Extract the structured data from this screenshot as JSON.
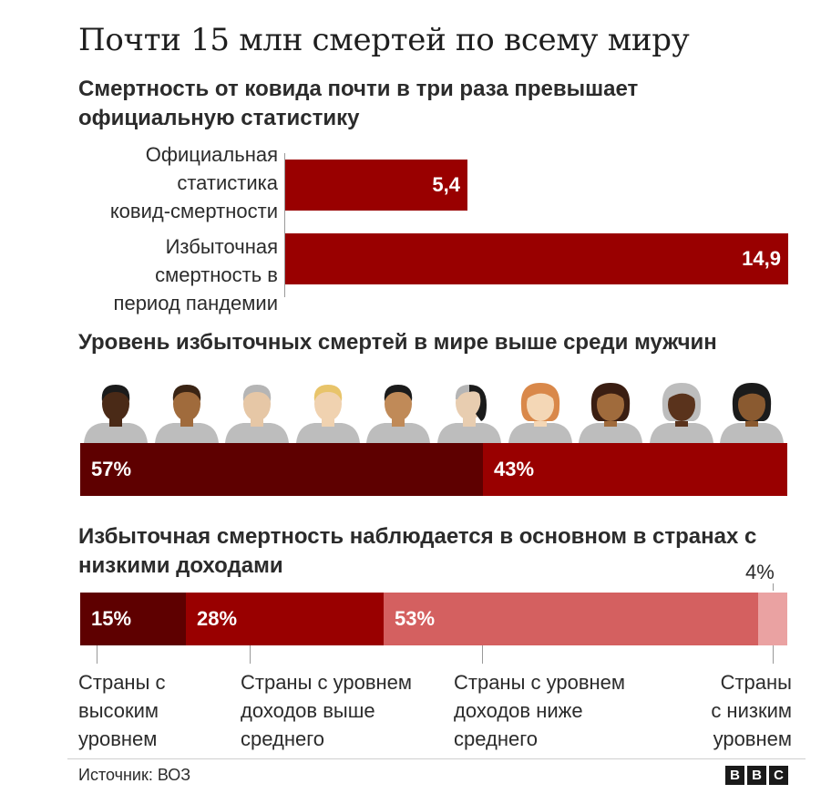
{
  "title": "Почти 15 млн смертей по всему миру",
  "chart_data": [
    {
      "type": "bar",
      "orientation": "horizontal",
      "title": "Смертность от ковида почти в три раза превышает официальную статистику",
      "categories": [
        "Официальная статистика ковид-смертности",
        "Избыточная смертность в период пандемии"
      ],
      "category_lines": [
        [
          "Официальная",
          "статистика",
          "ковид-смертности"
        ],
        [
          "Избыточная",
          "смертность в",
          "период пандемии"
        ]
      ],
      "values": [
        5.4,
        14.9
      ],
      "value_labels": [
        "5,4",
        "14,9"
      ],
      "xlim": [
        0,
        14.9
      ]
    },
    {
      "type": "bar",
      "orientation": "stacked-horizontal",
      "title": "Уровень избыточных смертей в мире выше среди мужчин",
      "categories": [
        "Мужчины",
        "Женщины"
      ],
      "values": [
        57,
        43
      ],
      "value_labels": [
        "57%",
        "43%"
      ],
      "colors": [
        "#5e0000",
        "#990000"
      ]
    },
    {
      "type": "bar",
      "orientation": "stacked-horizontal",
      "title": "Избыточная смертность наблюдается в основном в странах с низкими доходами",
      "values": [
        15,
        28,
        53,
        4
      ],
      "value_labels": [
        "15%",
        "28%",
        "53%",
        "4%"
      ],
      "colors": [
        "#5e0000",
        "#990000",
        "#d46060",
        "#eaa2a2"
      ],
      "category_lines": [
        [
          "Страны с",
          "высоким",
          "уровнем"
        ],
        [
          "Страны с уровнем",
          "доходов выше",
          "среднего"
        ],
        [
          "Страны с уровнем",
          "доходов ниже",
          "среднего"
        ],
        [
          "Страны",
          "с низким",
          "уровнем"
        ]
      ]
    }
  ],
  "people": [
    {
      "gender": "male",
      "skin": "#4a2a17",
      "hair": "#1b1b1b"
    },
    {
      "gender": "male",
      "skin": "#a06b3c",
      "hair": "#3a2414"
    },
    {
      "gender": "male",
      "skin": "#e6c7a6",
      "hair": "#b5b5b5"
    },
    {
      "gender": "male",
      "skin": "#f0d2b0",
      "hair": "#e8c46a"
    },
    {
      "gender": "male",
      "skin": "#c08a58",
      "hair": "#1b1b1b"
    },
    {
      "gender": "split",
      "skin": "#e8cdb0",
      "hair": "#b5b5b5",
      "hair2": "#1b1b1b"
    },
    {
      "gender": "female",
      "skin": "#f4d7b6",
      "hair": "#d9884a"
    },
    {
      "gender": "female",
      "skin": "#a06b3c",
      "hair": "#3a1e12"
    },
    {
      "gender": "female",
      "skin": "#5a331c",
      "hair": "#bdbdbd"
    },
    {
      "gender": "female",
      "skin": "#8a5a30",
      "hair": "#1b1b1b"
    }
  ],
  "colors": {
    "bar": "#990000",
    "bar_dark": "#5e0000",
    "shirt": "#bdbdbd"
  },
  "footer": {
    "source": "Источник: ВОЗ",
    "logo": [
      "B",
      "B",
      "C"
    ]
  }
}
